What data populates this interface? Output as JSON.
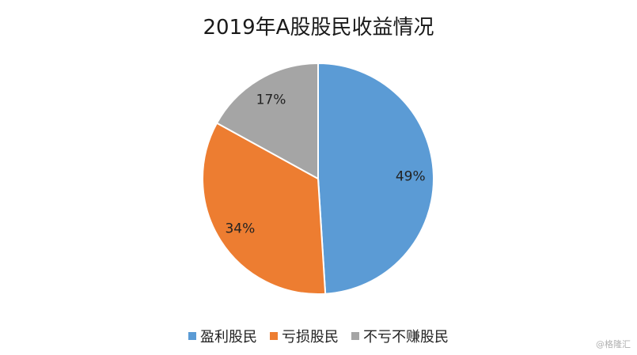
{
  "chart_data": {
    "type": "pie",
    "title": "2019年A股股民收益情况",
    "categories": [
      "盈利股民",
      "亏损股民",
      "不亏不赚股民"
    ],
    "values": [
      49,
      34,
      17
    ],
    "data_labels": [
      "49%",
      "34%",
      "17%"
    ],
    "colors": [
      "#5b9bd5",
      "#ed7d31",
      "#a5a5a5"
    ],
    "legend_position": "bottom"
  },
  "watermark": "@格隆汇"
}
